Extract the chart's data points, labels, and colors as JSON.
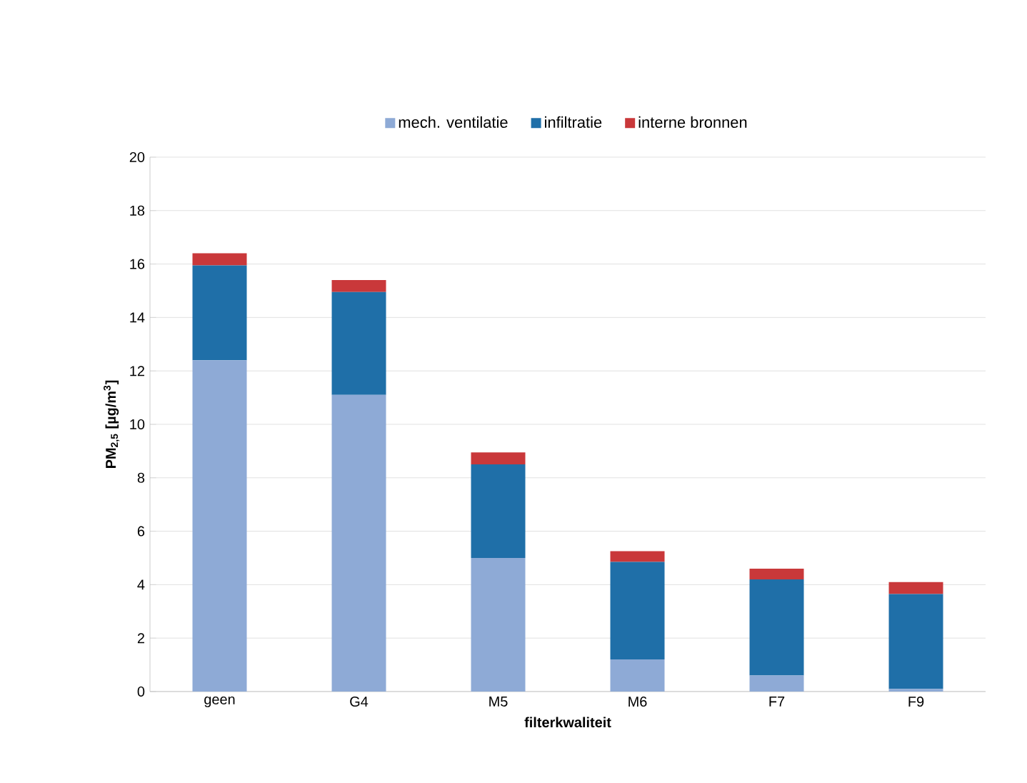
{
  "chart_data": {
    "type": "bar",
    "stacked": true,
    "xlabel": "filterkwaliteit",
    "ylabel": "PM$_{2,5}$ [µg/m$^{3}$]",
    "categories": [
      "geen",
      "G4",
      "M5",
      "M6",
      "F7",
      "F9"
    ],
    "series": [
      {
        "name": "mech. ventilatie",
        "color": "#8eaad6",
        "values": [
          12.4,
          11.1,
          5.0,
          1.2,
          0.6,
          0.1
        ]
      },
      {
        "name": "infiltratie",
        "color": "#1f6fa8",
        "values": [
          3.55,
          3.85,
          3.5,
          3.65,
          3.6,
          3.55
        ]
      },
      {
        "name": "interne bronnen",
        "color": "#c9383a",
        "values": [
          0.45,
          0.45,
          0.45,
          0.4,
          0.4,
          0.45
        ]
      }
    ],
    "ylim": [
      0,
      20
    ],
    "yticks": [
      0,
      2,
      4,
      6,
      8,
      10,
      12,
      14,
      16,
      18,
      20
    ],
    "grid": "y",
    "legend": "top"
  }
}
